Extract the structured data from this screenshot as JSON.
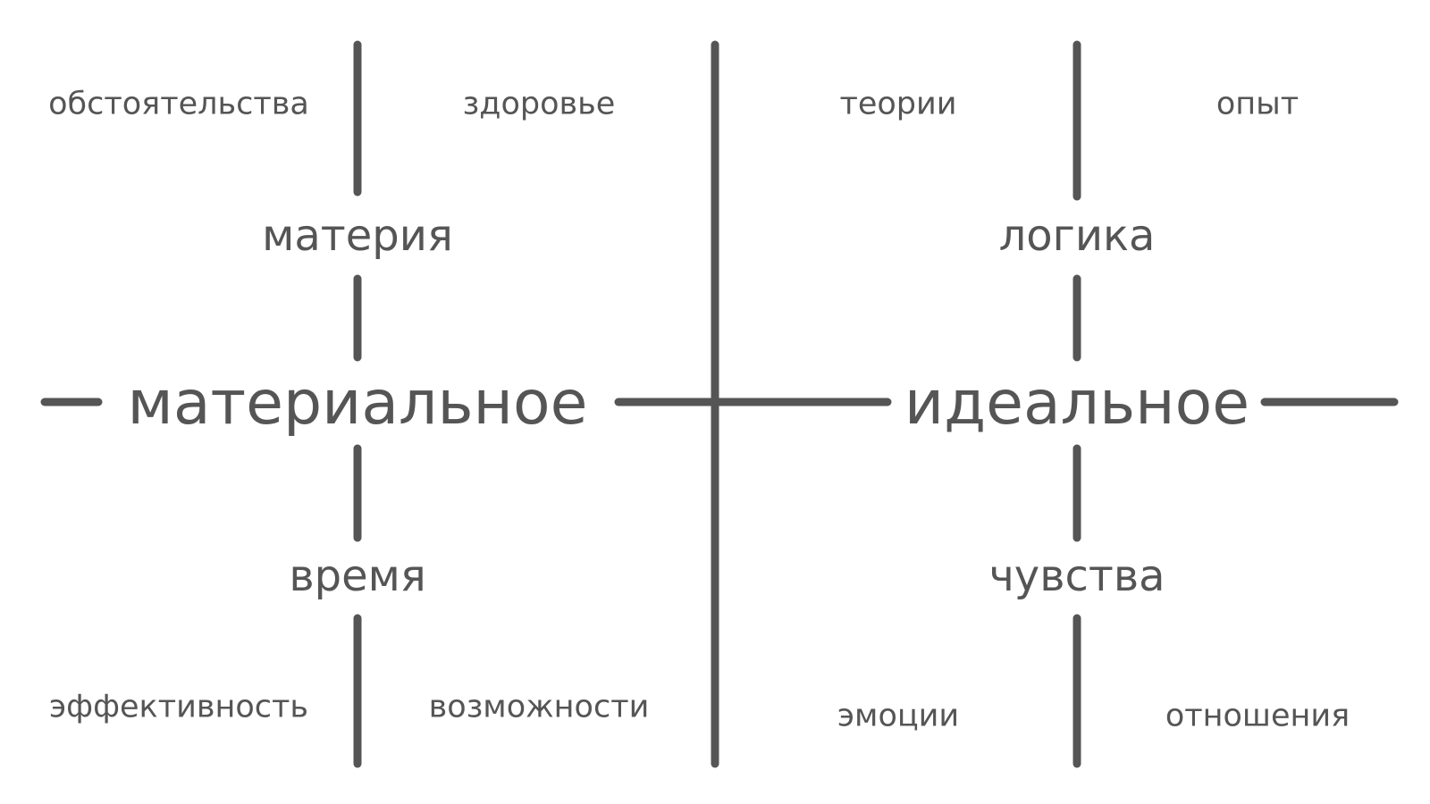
{
  "left": {
    "title": "материальное",
    "top": {
      "title": "материя",
      "left": "обстоятельства",
      "right": "здоровье"
    },
    "bottom": {
      "title": "время",
      "left": "эффективность",
      "right": "возможности"
    }
  },
  "right": {
    "title": "идеальное",
    "top": {
      "title": "логика",
      "left": "теории",
      "right": "опыт"
    },
    "bottom": {
      "title": "чувства",
      "left": "эмоции",
      "right": "отношения"
    }
  },
  "colors": {
    "ink": "#555555",
    "background": "#ffffff"
  }
}
